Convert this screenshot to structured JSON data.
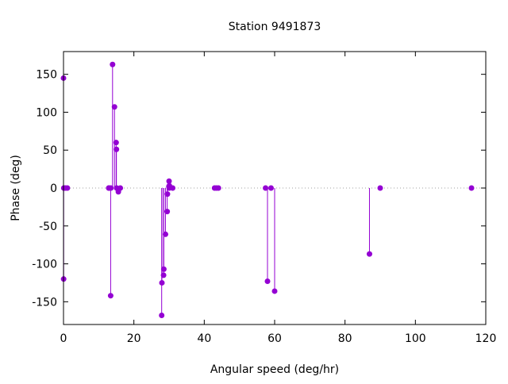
{
  "chart_data": {
    "type": "impulse-scatter",
    "title": "Station 9491873",
    "xlabel": "Angular speed (deg/hr)",
    "ylabel": "Phase (deg)",
    "xlim": [
      0,
      120
    ],
    "ylim": [
      -180,
      180
    ],
    "xticks": [
      0,
      20,
      40,
      60,
      80,
      100,
      120
    ],
    "yticks": [
      -150,
      -100,
      -50,
      0,
      50,
      100,
      150
    ],
    "zero_line": "dotted",
    "color": "#9400d3",
    "points": [
      {
        "x": 0.0,
        "y": 145
      },
      {
        "x": 0.04,
        "y": -120
      },
      {
        "x": 0.08,
        "y": 0
      },
      {
        "x": 0.54,
        "y": 0
      },
      {
        "x": 1.1,
        "y": 0
      },
      {
        "x": 12.85,
        "y": 0
      },
      {
        "x": 12.93,
        "y": 0
      },
      {
        "x": 13.4,
        "y": -142
      },
      {
        "x": 13.47,
        "y": 0
      },
      {
        "x": 13.94,
        "y": 163
      },
      {
        "x": 14.49,
        "y": 107
      },
      {
        "x": 14.96,
        "y": 60
      },
      {
        "x": 15.04,
        "y": 51
      },
      {
        "x": 15.1,
        "y": 0
      },
      {
        "x": 15.59,
        "y": -5
      },
      {
        "x": 16.14,
        "y": 0
      },
      {
        "x": 27.9,
        "y": -168
      },
      {
        "x": 27.97,
        "y": -125
      },
      {
        "x": 28.44,
        "y": -115
      },
      {
        "x": 28.51,
        "y": -107
      },
      {
        "x": 28.98,
        "y": -61
      },
      {
        "x": 29.46,
        "y": -31
      },
      {
        "x": 29.53,
        "y": -8
      },
      {
        "x": 29.96,
        "y": 2
      },
      {
        "x": 30.0,
        "y": 9
      },
      {
        "x": 30.04,
        "y": 0
      },
      {
        "x": 30.08,
        "y": 3
      },
      {
        "x": 31.02,
        "y": 0
      },
      {
        "x": 42.93,
        "y": 0
      },
      {
        "x": 43.48,
        "y": 0
      },
      {
        "x": 44.03,
        "y": 0
      },
      {
        "x": 57.42,
        "y": 0
      },
      {
        "x": 57.97,
        "y": -123
      },
      {
        "x": 58.98,
        "y": 0
      },
      {
        "x": 60.0,
        "y": -136
      },
      {
        "x": 86.95,
        "y": -87
      },
      {
        "x": 90.0,
        "y": 0
      },
      {
        "x": 115.94,
        "y": 0
      }
    ]
  }
}
